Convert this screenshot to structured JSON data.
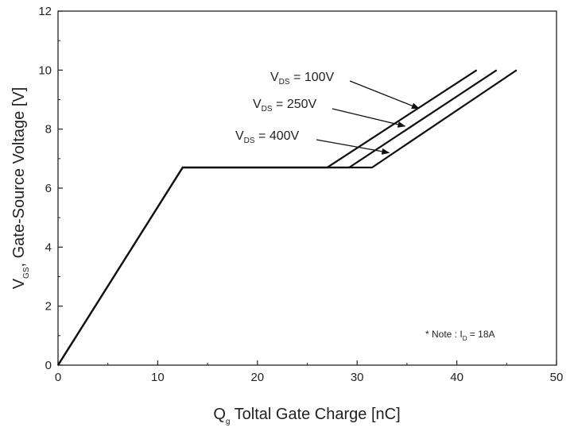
{
  "chart_data": {
    "type": "line",
    "xlabel": {
      "main": "Q",
      "sub": "g",
      "rest": " Toltal Gate Charge [nC]"
    },
    "ylabel": {
      "main": "V",
      "sub": "GS",
      "rest": ", Gate-Source Voltage [V]"
    },
    "xlim": [
      0,
      50
    ],
    "ylim": [
      0,
      12
    ],
    "xticks": [
      "0",
      "10",
      "20",
      "30",
      "40",
      "50"
    ],
    "yticks": [
      "0",
      "2",
      "4",
      "6",
      "8",
      "10",
      "12"
    ],
    "grid": false,
    "series": [
      {
        "name": "V_DS = 100V",
        "x": [
          0,
          12.5,
          27.0,
          42.0
        ],
        "y": [
          0,
          6.7,
          6.7,
          10.0
        ]
      },
      {
        "name": "V_DS = 250V",
        "x": [
          0,
          12.5,
          29.2,
          44.0
        ],
        "y": [
          0,
          6.7,
          6.7,
          10.0
        ]
      },
      {
        "name": "V_DS = 400V",
        "x": [
          0,
          12.5,
          31.5,
          46.0
        ],
        "y": [
          0,
          6.7,
          6.7,
          10.0
        ]
      }
    ],
    "annotations": [
      {
        "main": "V",
        "sub": "DS",
        "rest": " = 100V",
        "arrow_to": [
          36.2,
          8.7
        ]
      },
      {
        "main": "V",
        "sub": "DS",
        "rest": " = 250V",
        "arrow_to": [
          34.8,
          8.1
        ]
      },
      {
        "main": "V",
        "sub": "DS",
        "rest": " = 400V",
        "arrow_to": [
          33.2,
          7.2
        ]
      }
    ],
    "note": {
      "prefix": "* Note : I",
      "sub": "D",
      "rest": " = 18A"
    }
  }
}
